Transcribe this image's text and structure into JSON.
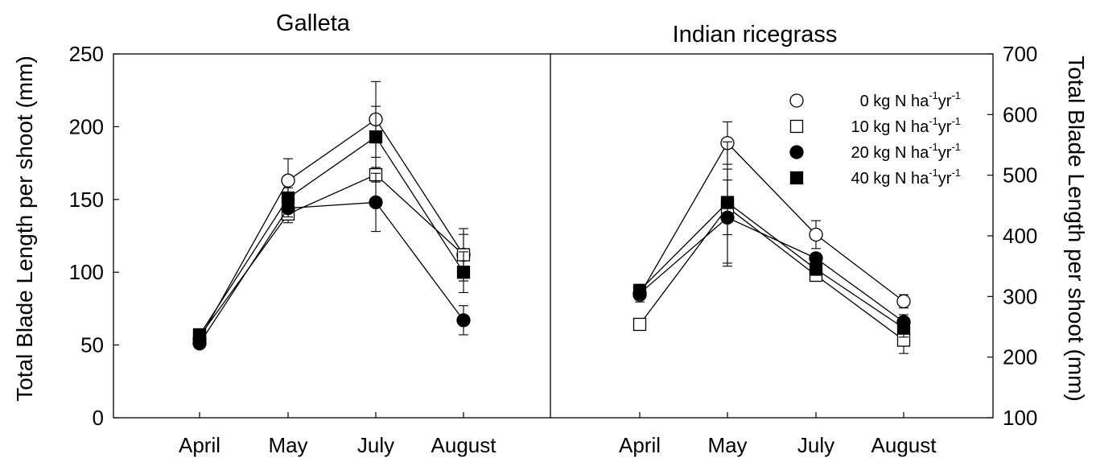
{
  "chart_data": [
    {
      "type": "line",
      "title": "Galleta",
      "xlabel": "",
      "ylabel": "Total Blade Length per shoot (mm)",
      "categories": [
        "April",
        "May",
        "July",
        "August"
      ],
      "ylim": [
        0,
        250
      ],
      "yticks": [
        0,
        50,
        100,
        150,
        200,
        250
      ],
      "axis_side": "left",
      "series": [
        {
          "legend_key": "n0",
          "marker": "open-circle",
          "values": [
            54,
            163,
            205,
            112
          ],
          "err": [
            5,
            15,
            26,
            18
          ]
        },
        {
          "legend_key": "n10",
          "marker": "open-square",
          "values": [
            56,
            140,
            167,
            112
          ],
          "err": [
            4,
            6,
            5,
            14
          ]
        },
        {
          "legend_key": "n20",
          "marker": "filled-circle",
          "values": [
            51,
            144,
            148,
            67
          ],
          "err": [
            3,
            6,
            20,
            10
          ]
        },
        {
          "legend_key": "n40",
          "marker": "filled-square",
          "values": [
            57,
            151,
            193,
            100
          ],
          "err": [
            4,
            7,
            21,
            14
          ]
        }
      ]
    },
    {
      "type": "line",
      "title": "Indian ricegrass",
      "xlabel": "",
      "ylabel": "Total Blade Length per shoot (mm)",
      "categories": [
        "April",
        "May",
        "July",
        "August"
      ],
      "ylim": [
        100,
        700
      ],
      "yticks": [
        100,
        200,
        300,
        400,
        500,
        600,
        700
      ],
      "axis_side": "right",
      "series": [
        {
          "legend_key": "n0",
          "marker": "open-circle",
          "values": [
            303,
            553,
            402,
            292
          ],
          "err": [
            12,
            35,
            23,
            11
          ]
        },
        {
          "legend_key": "n10",
          "marker": "open-square",
          "values": [
            254,
            447,
            335,
            228
          ],
          "err": [
            8,
            45,
            10,
            22
          ]
        },
        {
          "legend_key": "n20",
          "marker": "filled-circle",
          "values": [
            305,
            430,
            363,
            258
          ],
          "err": [
            10,
            80,
            8,
            12
          ]
        },
        {
          "legend_key": "n40",
          "marker": "filled-square",
          "values": [
            310,
            455,
            345,
            248
          ],
          "err": [
            10,
            100,
            10,
            15
          ]
        }
      ]
    }
  ],
  "legend": {
    "placement": "top-right",
    "unit_main": "kg N ha",
    "sup1": "-1",
    "unit_yr": "yr",
    "sup2": "-1",
    "items": [
      {
        "key": "n0",
        "marker": "open-circle",
        "rate": "0"
      },
      {
        "key": "n10",
        "marker": "open-square",
        "rate": "10"
      },
      {
        "key": "n20",
        "marker": "filled-circle",
        "rate": "20"
      },
      {
        "key": "n40",
        "marker": "filled-square",
        "rate": "40"
      }
    ]
  },
  "colors": {
    "line": "#000000",
    "open_fill": "#ffffff",
    "filled": "#000000"
  }
}
